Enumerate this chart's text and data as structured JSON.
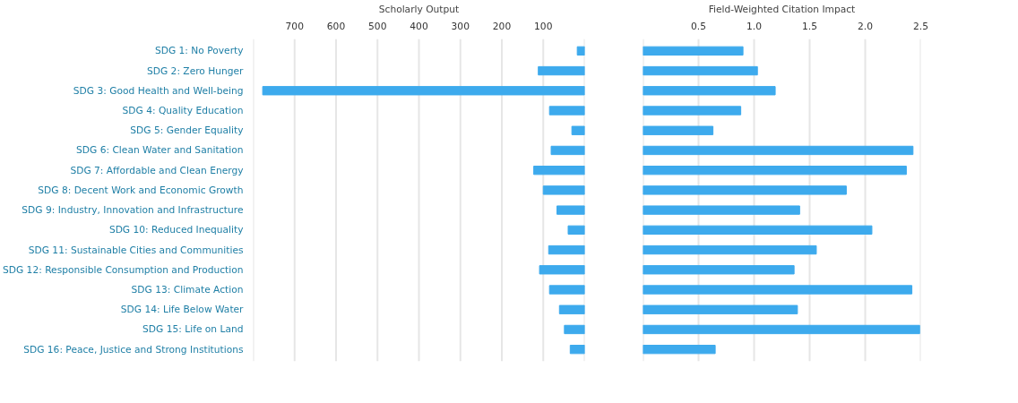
{
  "chart_data": [
    {
      "type": "bar",
      "orientation": "horizontal",
      "xlabel": "Scholarly Output",
      "categories": [
        "SDG 1: No Poverty",
        "SDG 2: Zero Hunger",
        "SDG 3: Good Health and Well-being",
        "SDG 4: Quality Education",
        "SDG 5: Gender Equality",
        "SDG 6: Clean Water and Sanitation",
        "SDG 7: Affordable and Clean Energy",
        "SDG 8: Decent Work and Economic Growth",
        "SDG 9: Industry, Innovation and Infrastructure",
        "SDG 10: Reduced Inequality",
        "SDG 11: Sustainable Cities and Communities",
        "SDG 12: Responsible Consumption and Production",
        "SDG 13: Climate Action",
        "SDG 14: Life Below Water",
        "SDG 15: Life on Land",
        "SDG 16: Peace, Justice and Strong Institutions"
      ],
      "series": [
        {
          "color": "#3daaed",
          "values": [
            18,
            112,
            777,
            85,
            31,
            81,
            123,
            100,
            67,
            40,
            87,
            109,
            85,
            61,
            49,
            35
          ]
        }
      ],
      "xlim": [
        800,
        0
      ],
      "xticks": [
        {
          "value": 800,
          "label": null
        },
        700,
        600,
        500,
        400,
        300,
        200,
        100,
        {
          "value": 0,
          "label": null
        }
      ],
      "grid": "x"
    },
    {
      "type": "bar",
      "orientation": "horizontal",
      "xlabel": "Field-Weighted Citation Impact",
      "categories": [
        null,
        null,
        null,
        null,
        null,
        null,
        null,
        null,
        null,
        null,
        null,
        null,
        null,
        null,
        null,
        null
      ],
      "series": [
        {
          "color": "#3daaed",
          "values": [
            0.9,
            1.03,
            1.19,
            0.88,
            0.63,
            2.43,
            2.37,
            1.83,
            1.41,
            2.06,
            1.56,
            1.36,
            2.42,
            1.39,
            2.49,
            0.65
          ]
        }
      ],
      "xlim": [
        0,
        2.5
      ],
      "xticks": [
        {
          "value": 0,
          "label": null
        },
        0.5,
        {
          "value": 1,
          "label": "1.0"
        },
        1.5,
        {
          "value": 2,
          "label": "2.0"
        },
        2.5
      ],
      "grid": "x",
      "tick_labels": "x"
    }
  ]
}
